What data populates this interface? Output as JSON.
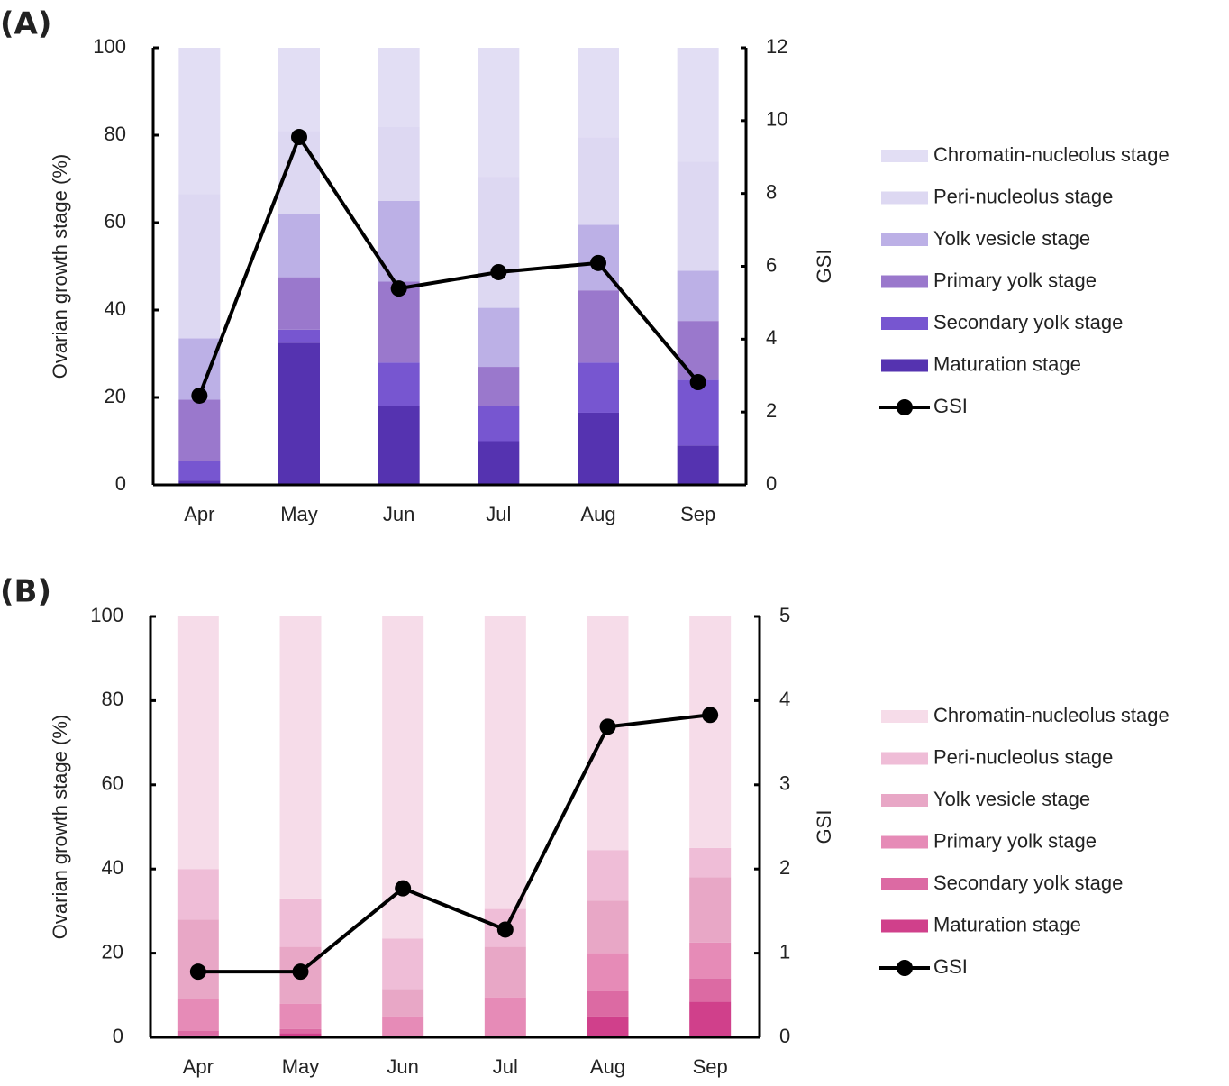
{
  "chart_data": [
    {
      "type": "bar",
      "stacked": true,
      "label": "(A)",
      "ylabel": "Ovarian growth stage (%)",
      "y2label": "GSI",
      "categories": [
        "Apr",
        "May",
        "Jun",
        "Jul",
        "Aug",
        "Sep"
      ],
      "ylim": [
        0,
        100
      ],
      "yticks": [
        0,
        20,
        40,
        60,
        80,
        100
      ],
      "y2lim": [
        0,
        12
      ],
      "y2ticks": [
        0,
        2,
        4,
        6,
        8,
        10,
        12
      ],
      "series": [
        {
          "name": "Chromatin-nucleolus stage",
          "color": "#e2def4",
          "values": [
            33.5,
            19,
            18,
            29.5,
            20.5,
            26
          ]
        },
        {
          "name": "Peri-nucleolus stage",
          "color": "#ddd8f2",
          "values": [
            33,
            19,
            17,
            30,
            20,
            25
          ]
        },
        {
          "name": "Yolk vesicle stage",
          "color": "#bcb0e6",
          "values": [
            14,
            14.5,
            18.5,
            13.5,
            15,
            11.5
          ]
        },
        {
          "name": "Primary yolk stage",
          "color": "#9a78cc",
          "values": [
            14,
            12,
            18.5,
            9,
            16.5,
            13.5
          ]
        },
        {
          "name": "Secondary yolk stage",
          "color": "#7756d0",
          "values": [
            4.5,
            3,
            10,
            8,
            11.5,
            15
          ]
        },
        {
          "name": "Maturation stage",
          "color": "#5533b0",
          "values": [
            1,
            32.5,
            18,
            10,
            16.5,
            9
          ]
        },
        {
          "name": "GSI",
          "type": "line",
          "axis": "y2",
          "color": "#000000",
          "values": [
            2.45,
            9.55,
            5.39,
            5.84,
            6.09,
            2.82
          ]
        }
      ]
    },
    {
      "type": "bar",
      "stacked": true,
      "label": "(B)",
      "ylabel": "Ovarian growth stage (%)",
      "y2label": "GSI",
      "categories": [
        "Apr",
        "May",
        "Jun",
        "Jul",
        "Aug",
        "Sep"
      ],
      "ylim": [
        0,
        100
      ],
      "yticks": [
        0,
        20,
        40,
        60,
        80,
        100
      ],
      "y2lim": [
        0,
        5
      ],
      "y2ticks": [
        0,
        1,
        2,
        3,
        4,
        5
      ],
      "series": [
        {
          "name": "Chromatin-nucleolus stage",
          "color": "#f6dce9",
          "values": [
            60,
            67,
            76.5,
            69.5,
            55.5,
            55
          ]
        },
        {
          "name": "Peri-nucleolus stage",
          "color": "#efbdd7",
          "values": [
            12,
            11.5,
            12,
            9,
            12,
            7
          ]
        },
        {
          "name": "Yolk vesicle stage",
          "color": "#e8a7c6",
          "values": [
            19,
            13.5,
            6.5,
            12,
            12.5,
            15.5
          ]
        },
        {
          "name": "Primary yolk stage",
          "color": "#e68bb7",
          "values": [
            7.5,
            6,
            5,
            9.5,
            9,
            8.5
          ]
        },
        {
          "name": "Secondary yolk stage",
          "color": "#dc6aa3",
          "values": [
            1,
            1,
            0,
            0,
            6,
            5.5
          ]
        },
        {
          "name": "Maturation stage",
          "color": "#d0408b",
          "values": [
            0.5,
            1,
            0,
            0,
            5,
            8.5
          ]
        },
        {
          "name": "GSI",
          "type": "line",
          "axis": "y2",
          "color": "#000000",
          "values": [
            0.78,
            0.78,
            1.77,
            1.28,
            3.69,
            3.83
          ]
        }
      ]
    }
  ]
}
